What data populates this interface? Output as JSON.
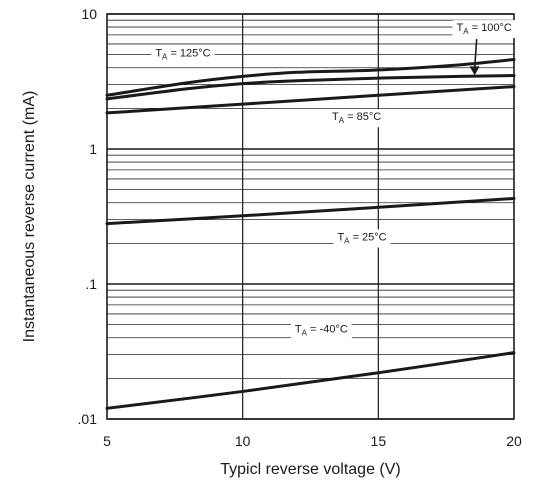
{
  "chart_data": {
    "type": "line",
    "title": "",
    "xlabel": "Typicl reverse voltage (V)",
    "ylabel": "Instantaneous reverse current (mA)",
    "xlim": [
      5,
      20
    ],
    "ylim": [
      0.01,
      10
    ],
    "y_scale": "log",
    "grid": true,
    "x_ticks": [
      5,
      10,
      15,
      20
    ],
    "x_tick_labels": [
      "5",
      "10",
      "15",
      "20"
    ],
    "y_ticks": [
      0.01,
      0.1,
      1,
      10
    ],
    "y_tick_labels": [
      ".01",
      ".1",
      "1",
      "10"
    ],
    "series": [
      {
        "name": "T_A = 125°C",
        "x": [
          5,
          8,
          10,
          12,
          15,
          18,
          20
        ],
        "y": [
          2.5,
          3.1,
          3.45,
          3.7,
          3.85,
          4.2,
          4.6
        ]
      },
      {
        "name": "T_A = 100°C",
        "x": [
          5,
          8,
          10,
          12,
          15,
          18,
          20
        ],
        "y": [
          2.35,
          2.8,
          3.05,
          3.2,
          3.35,
          3.45,
          3.5
        ]
      },
      {
        "name": "T_A = 85°C",
        "x": [
          5,
          10,
          15,
          20
        ],
        "y": [
          1.85,
          2.15,
          2.5,
          2.9
        ]
      },
      {
        "name": "T_A = 25°C",
        "x": [
          5,
          10,
          15,
          20
        ],
        "y": [
          0.28,
          0.32,
          0.37,
          0.43
        ]
      },
      {
        "name": "T_A = -40°C",
        "x": [
          5,
          10,
          15,
          20
        ],
        "y": [
          0.012,
          0.016,
          0.022,
          0.031
        ]
      }
    ],
    "annotations": [
      {
        "series": "T_A = 125°C",
        "main": "T",
        "sub": "A",
        "rest": " = 125°C",
        "x": 7.8,
        "y": 5.2
      },
      {
        "series": "T_A = 100°C",
        "main": "T",
        "sub": "A",
        "rest": " = 100°C",
        "x": 18.9,
        "y": 8.0,
        "arrow_to": [
          18.55,
          3.45
        ]
      },
      {
        "series": "T_A = 85°C",
        "main": "T",
        "sub": "A",
        "rest": " = 85°C",
        "x": 14.2,
        "y": 1.75
      },
      {
        "series": "T_A = 25°C",
        "main": "T",
        "sub": "A",
        "rest": " = 25°C",
        "x": 14.4,
        "y": 0.225
      },
      {
        "series": "T_A = -40°C",
        "main": "T",
        "sub": "A",
        "rest": " = -40°C",
        "x": 12.9,
        "y": 0.047
      }
    ]
  }
}
